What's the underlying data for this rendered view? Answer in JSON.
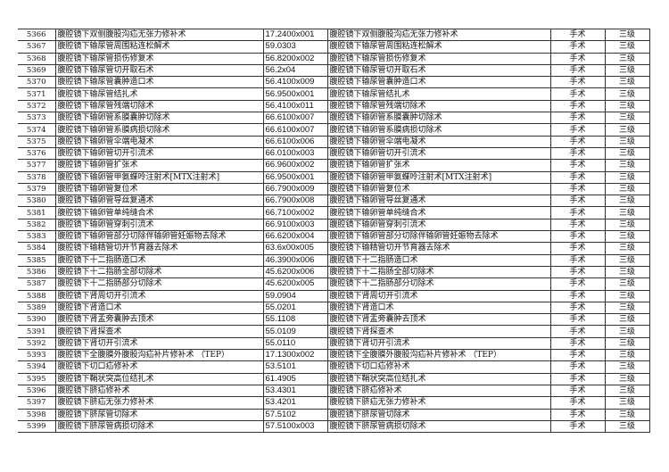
{
  "rows": [
    [
      "5366",
      "腹腔镜下双侧腹股沟疝无张力修补术",
      "17.2400x001",
      "腹腔镜下双侧腹股沟疝无张力修补术",
      "手术",
      "三级"
    ],
    [
      "5367",
      "腹腔镜下输尿管周围粘连松解术",
      "59.0303",
      "腹腔镜下输尿管周围粘连松解术",
      "手术",
      "三级"
    ],
    [
      "5368",
      "腹腔镜下输尿管损伤修复术",
      "56.8200x002",
      "腹腔镜下输尿管损伤修复术",
      "手术",
      "三级"
    ],
    [
      "5369",
      "腹腔镜下输尿管切开取石术",
      "56.2x04",
      "腹腔镜下输尿管切开取石术",
      "手术",
      "三级"
    ],
    [
      "5370",
      "腹腔镜下输尿管囊肿造口术",
      "56.4100x009",
      "腹腔镜下输尿管囊肿造口术",
      "手术",
      "三级"
    ],
    [
      "5371",
      "腹腔镜下输尿管结扎术",
      "56.9500x001",
      "腹腔镜下输尿管结扎术",
      "手术",
      "三级"
    ],
    [
      "5372",
      "腹腔镜下输尿管残端切除术",
      "56.4100x011",
      "腹腔镜下输尿管残端切除术",
      "手术",
      "三级"
    ],
    [
      "5373",
      "腹腔镜下输卵管系膜囊肿切除术",
      "66.6100x007",
      "腹腔镜下输卵管系膜囊肿切除术",
      "手术",
      "三级"
    ],
    [
      "5374",
      "腹腔镜下输卵管系膜病损切除术",
      "66.6100x007",
      "腹腔镜下输卵管系膜病损切除术",
      "手术",
      "三级"
    ],
    [
      "5375",
      "腹腔镜下输卵管伞端电凝术",
      "66.6100x006",
      "腹腔镜下输卵管伞端电凝术",
      "手术",
      "三级"
    ],
    [
      "5376",
      "腹腔镜下输卵管切开引流术",
      "66.0100x003",
      "腹腔镜下输卵管切开引流术",
      "手术",
      "三级"
    ],
    [
      "5377",
      "腹腔镜下输卵管扩张术",
      "66.9600x002",
      "腹腔镜下输卵管扩张术",
      "手术",
      "三级"
    ],
    [
      "5378",
      "腹腔镜下输卵管甲氨蝶呤注射术[MTX注射术]",
      "66.9500x001",
      "腹腔镜下输卵管甲氨蝶呤注射术[MTX注射术]",
      "手术",
      "三级"
    ],
    [
      "5379",
      "腹腔镜下输卵管复位术",
      "66.7900x009",
      "腹腔镜下输卵管复位术",
      "手术",
      "三级"
    ],
    [
      "5380",
      "腹腔镜下输卵管导丝复通术",
      "66.7900x008",
      "腹腔镜下输卵管导丝复通术",
      "手术",
      "三级"
    ],
    [
      "5381",
      "腹腔镜下输卵管单纯缝合术",
      "66.7100x002",
      "腹腔镜下输卵管单纯缝合术",
      "手术",
      "三级"
    ],
    [
      "5382",
      "腹腔镜下输卵管穿刺引流术",
      "66.9100x003",
      "腹腔镜下输卵管穿刺引流术",
      "手术",
      "三级"
    ],
    [
      "5383",
      "腹腔镜下输卵管部分切除伴输卵管妊娠物去除术",
      "66.6200x004",
      "腹腔镜下输卵管部分切除伴输卵管妊娠物去除术",
      "手术",
      "三级"
    ],
    [
      "5384",
      "腹腔镜下输精管切开节育器去除术",
      "63.6x00x005",
      "腹腔镜下输精管切开节育器去除术",
      "手术",
      "三级"
    ],
    [
      "5385",
      "腹腔镜下十二指肠造口术",
      "46.3900x006",
      "腹腔镜下十二指肠造口术",
      "手术",
      "三级"
    ],
    [
      "5386",
      "腹腔镜下十二指肠全部切除术",
      "45.6200x006",
      "腹腔镜下十二指肠全部切除术",
      "手术",
      "三级"
    ],
    [
      "5387",
      "腹腔镜下十二指肠部分切除术",
      "45.6200x005",
      "腹腔镜下十二指肠部分切除术",
      "手术",
      "三级"
    ],
    [
      "5388",
      "腹腔镜下肾周切开引流术",
      "59.0904",
      "腹腔镜下肾周切开引流术",
      "手术",
      "三级"
    ],
    [
      "5389",
      "腹腔镜下肾造口术",
      "55.0201",
      "腹腔镜下肾造口术",
      "手术",
      "三级"
    ],
    [
      "5390",
      "腹腔镜下肾盂旁囊肿去顶术",
      "55.1108",
      "腹腔镜下肾盂旁囊肿去顶术",
      "手术",
      "三级"
    ],
    [
      "5391",
      "腹腔镜下肾探查术",
      "55.0109",
      "腹腔镜下肾探查术",
      "手术",
      "三级"
    ],
    [
      "5392",
      "腹腔镜下肾切开引流术",
      "55.0110",
      "腹腔镜下肾切开引流术",
      "手术",
      "三级"
    ],
    [
      "5393",
      "腹腔镜下全腹膜外腹股沟疝补片修补术 （TEP）",
      "17.1300x002",
      "腹腔镜下全腹膜外腹股沟疝补片修补术 （TEP）",
      "手术",
      "三级"
    ],
    [
      "5394",
      "腹腔镜下切口疝修补术",
      "53.5101",
      "腹腔镜下切口疝修补术",
      "手术",
      "三级"
    ],
    [
      "5395",
      "腹腔镜下鞘状突高位结扎术",
      "61.4905",
      "腹腔镜下鞘状突高位结扎术",
      "手术",
      "三级"
    ],
    [
      "5396",
      "腹腔镜下脐疝修补术",
      "53.4301",
      "腹腔镜下脐疝修补术",
      "手术",
      "三级"
    ],
    [
      "5397",
      "腹腔镜下脐疝无张力修补术",
      "53.4201",
      "腹腔镜下脐疝无张力修补术",
      "手术",
      "三级"
    ],
    [
      "5398",
      "腹腔镜下脐尿管切除术",
      "57.5102",
      "腹腔镜下脐尿管切除术",
      "手术",
      "三级"
    ],
    [
      "5399",
      "腹腔镜下脐尿管病损切除术",
      "57.5100x003",
      "腹腔镜下脐尿管病损切除术",
      "手术",
      "三级"
    ]
  ]
}
